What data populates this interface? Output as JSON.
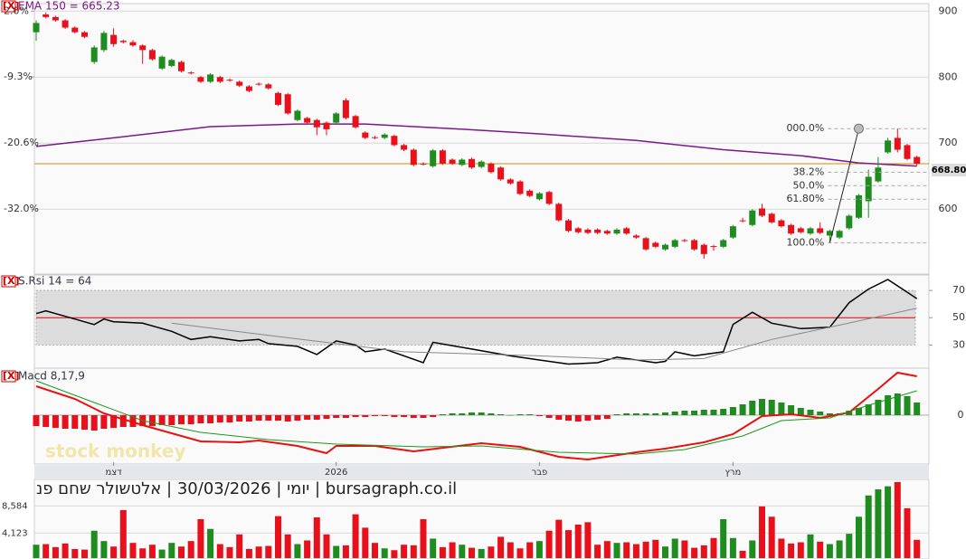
{
  "chart_data": [
    {
      "type": "candlestick",
      "close_label": "[X]",
      "title": "EMA 150 = 665.23",
      "open": [
        868,
        895,
        891,
        886,
        875,
        868,
        823,
        841,
        864,
        855,
        853,
        848,
        841,
        813,
        817,
        823,
        807,
        800,
        793,
        800,
        796,
        793,
        786,
        790,
        789,
        776,
        774,
        735,
        738,
        735,
        731,
        731,
        765,
        741,
        716,
        709,
        708,
        711,
        697,
        690,
        669,
        665,
        689,
        675,
        667,
        676,
        664,
        669,
        663,
        645,
        642,
        628,
        615,
        626,
        608,
        583,
        571,
        569,
        569,
        567,
        563,
        571,
        560,
        556,
        549,
        539,
        543,
        553,
        553,
        546,
        544,
        543,
        557,
        583,
        576,
        601,
        593,
        583,
        576,
        571,
        563,
        571,
        560,
        557,
        571,
        587,
        612,
        642,
        686,
        708,
        697,
        679
      ],
      "high": [
        886,
        898,
        893,
        888,
        877,
        870,
        848,
        870,
        874,
        857,
        856,
        850,
        843,
        833,
        828,
        825,
        809,
        802,
        806,
        802,
        798,
        795,
        788,
        792,
        791,
        778,
        776,
        751,
        740,
        737,
        733,
        747,
        768,
        743,
        718,
        711,
        715,
        713,
        699,
        692,
        671,
        691,
        691,
        677,
        677,
        678,
        674,
        671,
        665,
        647,
        644,
        630,
        626,
        628,
        610,
        585,
        573,
        571,
        571,
        569,
        571,
        573,
        562,
        558,
        551,
        548,
        555,
        555,
        555,
        548,
        546,
        555,
        576,
        587,
        600,
        608,
        595,
        585,
        578,
        573,
        573,
        580,
        569,
        569,
        592,
        623,
        660,
        679,
        708,
        722,
        699,
        681
      ],
      "low": [
        855,
        889,
        884,
        873,
        866,
        859,
        820,
        838,
        846,
        851,
        846,
        820,
        825,
        811,
        815,
        807,
        804,
        791,
        791,
        791,
        793,
        785,
        777,
        787,
        781,
        756,
        743,
        733,
        729,
        712,
        712,
        729,
        736,
        722,
        706,
        706,
        706,
        695,
        688,
        665,
        666,
        663,
        667,
        667,
        665,
        661,
        662,
        654,
        643,
        637,
        621,
        618,
        613,
        606,
        581,
        565,
        563,
        562,
        562,
        561,
        561,
        561,
        555,
        537,
        541,
        537,
        541,
        550,
        537,
        525,
        537,
        541,
        555,
        580,
        574,
        588,
        578,
        572,
        561,
        563,
        561,
        562,
        549,
        555,
        569,
        585,
        587,
        640,
        684,
        686,
        674,
        666
      ],
      "close": [
        882,
        891,
        886,
        875,
        868,
        861,
        845,
        867,
        850,
        853,
        848,
        841,
        827,
        831,
        826,
        809,
        806,
        793,
        804,
        793,
        795,
        787,
        779,
        789,
        783,
        758,
        745,
        749,
        731,
        724,
        721,
        745,
        738,
        724,
        708,
        708,
        713,
        697,
        690,
        667,
        668,
        689,
        669,
        669,
        675,
        663,
        672,
        656,
        645,
        639,
        623,
        620,
        624,
        608,
        583,
        567,
        565,
        564,
        564,
        563,
        569,
        563,
        557,
        539,
        543,
        546,
        553,
        552,
        539,
        532,
        543,
        553,
        574,
        582,
        598,
        590,
        580,
        574,
        563,
        565,
        571,
        564,
        567,
        567,
        590,
        621,
        649,
        663,
        704,
        690,
        676,
        668.8
      ],
      "up_color": "#1e8c1e",
      "down_color": "#e8101a",
      "ylim": [
        503,
        910
      ],
      "yticks": [
        600,
        700,
        800,
        900
      ],
      "y2lim": [
        -43,
        3.13
      ],
      "y2ticks": [
        {
          "value": 2.0,
          "label": "2.0%"
        },
        {
          "value": -9.3,
          "label": "-9.3%"
        },
        {
          "value": -20.6,
          "label": "-20.6%"
        },
        {
          "value": -32.0,
          "label": "-32.0%"
        }
      ],
      "grid": true,
      "ema": {
        "color": "#7a1a8a",
        "x": [
          0,
          8,
          18,
          27,
          34,
          43,
          52,
          62,
          71,
          79,
          85,
          91
        ],
        "values": [
          695,
          708,
          725,
          729,
          729,
          722,
          714,
          704,
          690,
          681,
          670,
          665.23
        ]
      },
      "last_price": {
        "value": 668.8,
        "label": "668.80",
        "color": "#c8900a"
      },
      "fib": {
        "x": [
          82,
          85
        ],
        "high": 722,
        "low": 549,
        "levels": [
          {
            "value": 0,
            "label": "000.0%"
          },
          {
            "value": 38.2,
            "label": "38.2%"
          },
          {
            "value": 50,
            "label": "50.0%"
          },
          {
            "value": 61.8,
            "label": "61.80%"
          },
          {
            "value": 100,
            "label": "100.0%"
          }
        ]
      }
    },
    {
      "type": "line",
      "close_label": "[X]",
      "title": "S.Rsi 14 = 64",
      "ylim": [
        13,
        80
      ],
      "yticks": [
        30,
        50,
        70
      ],
      "band": [
        30,
        70
      ],
      "midline": 50,
      "midline_color": "#e00000",
      "series": [
        {
          "color": "#000000",
          "x": [
            0,
            1,
            3,
            6,
            7,
            8,
            11,
            14,
            16,
            18,
            21,
            23,
            24,
            27,
            29,
            31,
            33,
            34,
            36,
            40,
            41,
            45,
            49,
            52,
            55,
            58,
            60,
            64,
            65,
            66,
            68,
            71,
            72,
            74,
            76,
            79,
            82,
            84,
            86,
            88,
            91
          ],
          "values": [
            53,
            55,
            51,
            45,
            49,
            47,
            46,
            40,
            34,
            36,
            33,
            34,
            31,
            29,
            23,
            33,
            30,
            25,
            27,
            17,
            32,
            27,
            22,
            19,
            16,
            17,
            21,
            17,
            18,
            25,
            22,
            25,
            45,
            54,
            46,
            42,
            43,
            61,
            71,
            78,
            64
          ]
        },
        {
          "color": "#888888",
          "x": [
            14,
            24,
            38,
            52,
            62,
            69,
            76,
            82,
            91
          ],
          "values": [
            46,
            37,
            25,
            22,
            19,
            20,
            34,
            43,
            57
          ]
        }
      ]
    },
    {
      "type": "macd",
      "close_label": "[X]",
      "title": "Macd 8,17,9",
      "ylim": [
        -52,
        52
      ],
      "yticks": [
        0
      ],
      "histogram": [
        -12,
        -13,
        -14,
        -15,
        -15,
        -16,
        -17,
        -15,
        -14,
        -13,
        -13,
        -12,
        -12,
        -11,
        -11,
        -10,
        -10,
        -9,
        -9,
        -8,
        -8,
        -7,
        -7,
        -6,
        -6,
        -6,
        -7,
        -6,
        -5,
        -5,
        -4,
        -3,
        -3,
        -2,
        -2,
        -1,
        -1,
        -2,
        -2,
        -3,
        -3,
        -2,
        1,
        2,
        2,
        3,
        3,
        2,
        1,
        0,
        1,
        1,
        -1,
        -3,
        -5,
        -6,
        -7,
        -6,
        -5,
        -4,
        1,
        2,
        2,
        2,
        2,
        3,
        4,
        5,
        5,
        6,
        6,
        7,
        9,
        12,
        16,
        18,
        17,
        14,
        11,
        8,
        6,
        4,
        2,
        2,
        5,
        8,
        12,
        17,
        22,
        24,
        21,
        14
      ],
      "up_color": "#1e8c1e",
      "down_color": "#e8101a",
      "series": [
        {
          "color": "#e81010",
          "x": [
            0,
            4,
            7,
            11,
            17,
            21,
            23,
            27,
            30,
            31,
            35,
            39,
            46,
            50,
            54,
            57,
            62,
            65,
            69,
            72,
            75,
            78,
            81,
            84,
            87,
            89,
            91
          ],
          "values": [
            32,
            18,
            2,
            -11,
            -29,
            -30,
            -28,
            -34,
            -42,
            -34,
            -34,
            -40,
            -31,
            -35,
            -46,
            -49,
            -41,
            -37,
            -30,
            -21,
            -1,
            1,
            -3,
            3,
            29,
            47,
            43
          ]
        },
        {
          "color": "#1a9a1a",
          "x": [
            0,
            6,
            11,
            17,
            24,
            31,
            40,
            46,
            54,
            62,
            67,
            73,
            77,
            82,
            86,
            91
          ],
          "values": [
            38,
            14,
            -6,
            -19,
            -27,
            -32,
            -35,
            -34,
            -41,
            -43,
            -38,
            -23,
            -6,
            -3,
            11,
            27
          ]
        }
      ],
      "watermark": "stock monkey",
      "xticks": [
        {
          "value": 8,
          "label": "דצמ"
        },
        {
          "value": 31,
          "label": "2026"
        },
        {
          "value": 52,
          "label": "פבר"
        },
        {
          "value": 72,
          "label": "מרץ"
        }
      ]
    },
    {
      "type": "bar",
      "ylim": [
        0,
        12640
      ],
      "yticks": [
        {
          "value": 4123,
          "label": "4,123"
        },
        {
          "value": 8584,
          "label": "8,584"
        }
      ],
      "up_color": "#1e8c1e",
      "down_color": "#e8101a",
      "values": [
        2200,
        2300,
        1800,
        2400,
        1500,
        1400,
        4500,
        2800,
        1900,
        7900,
        2500,
        1600,
        2200,
        1400,
        2500,
        1900,
        2800,
        6400,
        4800,
        2300,
        1800,
        3900,
        1500,
        1900,
        2000,
        6900,
        3900,
        2300,
        2900,
        6700,
        3900,
        2000,
        2100,
        7200,
        5000,
        2500,
        1600,
        1300,
        2200,
        2100,
        6400,
        3200,
        1800,
        2600,
        2200,
        1700,
        1500,
        1900,
        3500,
        2600,
        1600,
        2600,
        2800,
        4500,
        6300,
        4600,
        5500,
        5900,
        2200,
        2800,
        2500,
        2600,
        2300,
        2700,
        3000,
        1900,
        3200,
        2900,
        1700,
        2100,
        3300,
        6400,
        3300,
        1200,
        2900,
        8500,
        6800,
        3200,
        2400,
        2600,
        3900,
        2700,
        2300,
        2900,
        4000,
        6800,
        10300,
        11300,
        11800,
        12500,
        8200,
        3000
      ]
    }
  ],
  "caption": "יומי | 30/03/2026 | אלטשולר שחם פנ | bursagraph.co.il"
}
